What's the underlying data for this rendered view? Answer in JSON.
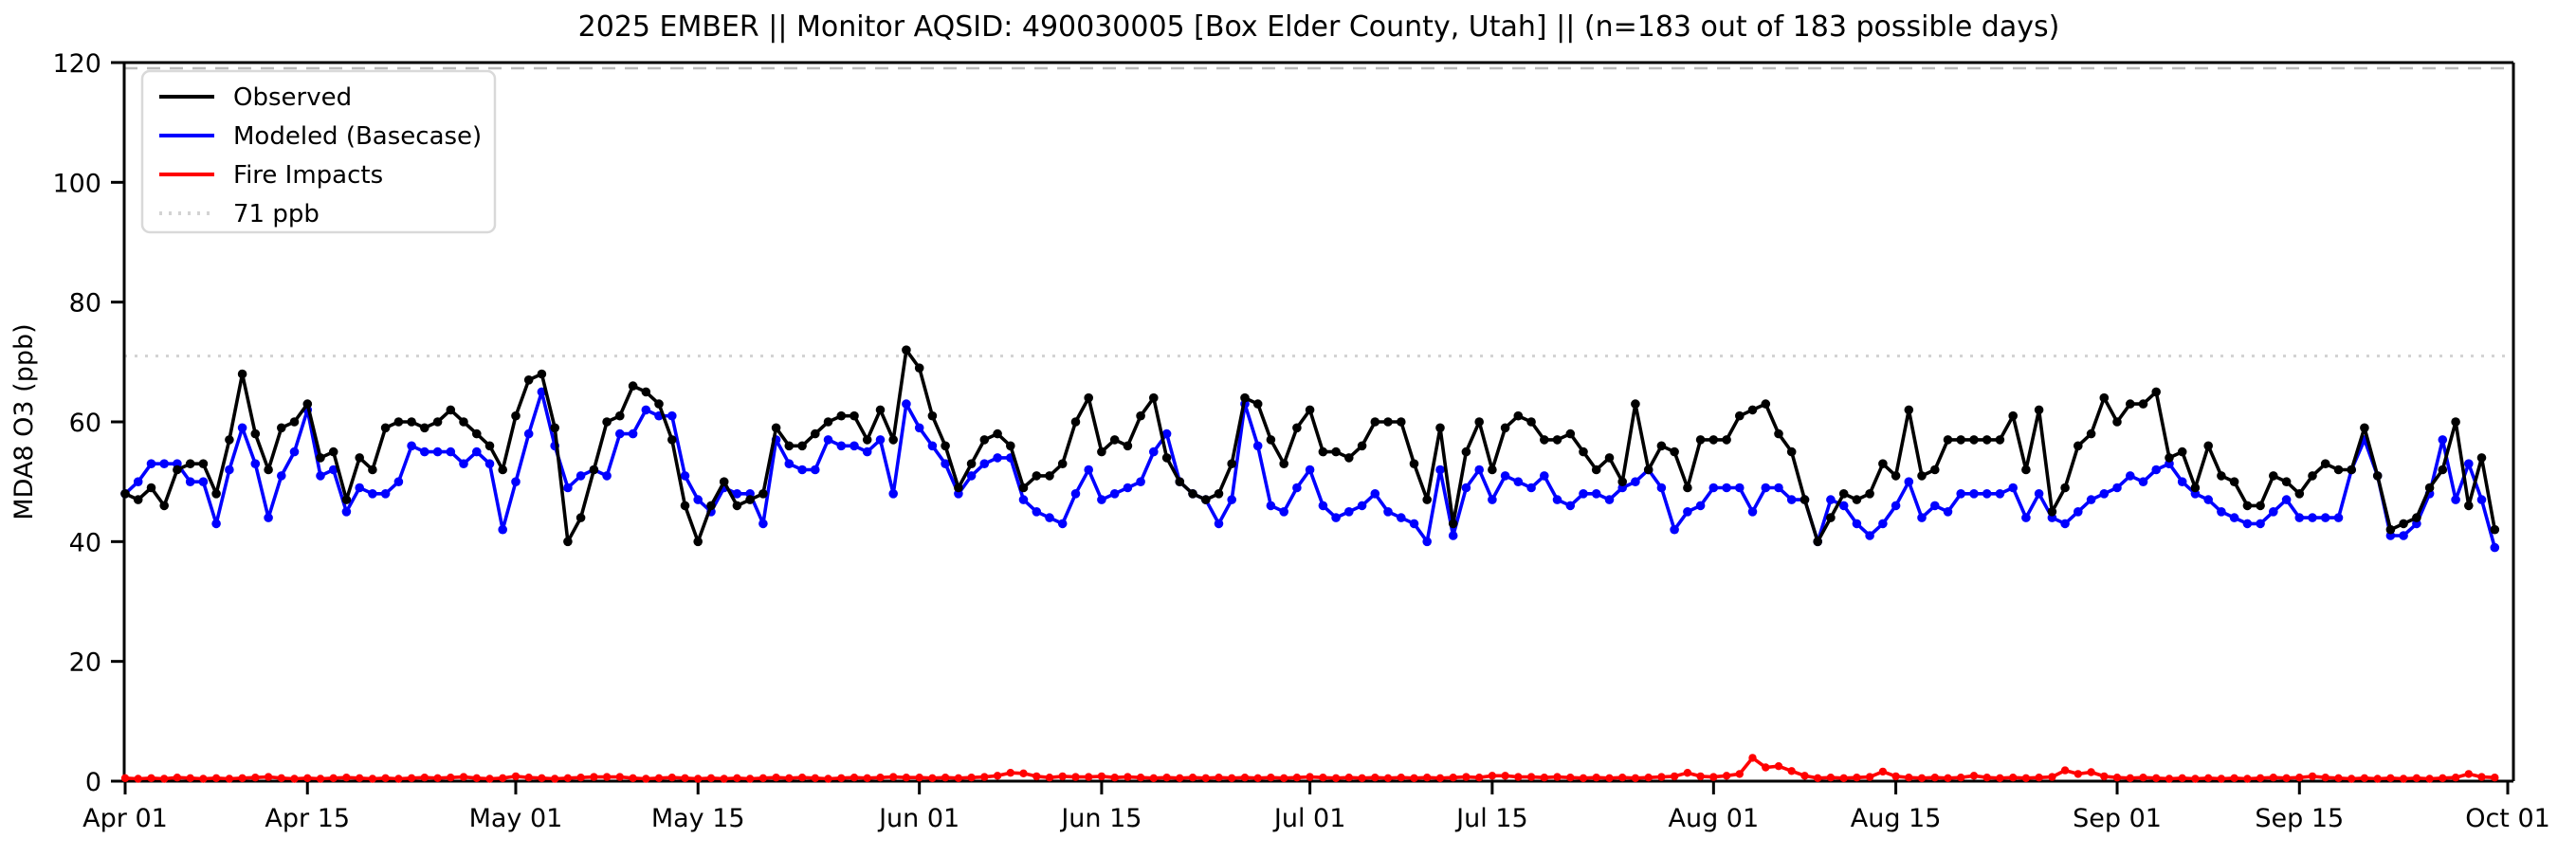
{
  "chart_data": {
    "type": "line",
    "title": "2025 EMBER || Monitor AQSID: 490030005 [Box Elder County, Utah] || (n=183 out of 183 possible days)",
    "ylabel": "MDA8 O3 (ppb)",
    "ylim": [
      0,
      120
    ],
    "x_range": [
      "Apr 01",
      "Oct 01"
    ],
    "n_days": 183,
    "grid": false,
    "legend_position": "upper left",
    "y_ticks": [
      0,
      20,
      40,
      60,
      80,
      100,
      120
    ],
    "x_ticks": [
      {
        "label": "Apr 01",
        "i": 0
      },
      {
        "label": "Apr 15",
        "i": 14
      },
      {
        "label": "May 01",
        "i": 30
      },
      {
        "label": "May 15",
        "i": 44
      },
      {
        "label": "Jun 01",
        "i": 61
      },
      {
        "label": "Jun 15",
        "i": 75
      },
      {
        "label": "Jul 01",
        "i": 91
      },
      {
        "label": "Jul 15",
        "i": 105
      },
      {
        "label": "Aug 01",
        "i": 122
      },
      {
        "label": "Aug 15",
        "i": 136
      },
      {
        "label": "Sep 01",
        "i": 153
      },
      {
        "label": "Sep 15",
        "i": 167
      },
      {
        "label": "Oct 01",
        "i": 183
      }
    ],
    "threshold": {
      "label": "71 ppb",
      "value": 71,
      "color": "#d3d3d3"
    },
    "top_dashed_line": {
      "value": 120,
      "color": "#bbbbbb"
    },
    "series": [
      {
        "name": "Observed",
        "color": "#000000",
        "values": [
          48,
          47,
          49,
          46,
          52,
          53,
          53,
          48,
          57,
          68,
          58,
          52,
          59,
          60,
          63,
          54,
          55,
          47,
          54,
          52,
          59,
          60,
          60,
          59,
          60,
          62,
          60,
          58,
          56,
          52,
          61,
          67,
          68,
          59,
          40,
          44,
          52,
          60,
          61,
          66,
          65,
          63,
          57,
          46,
          40,
          46,
          50,
          46,
          47,
          48,
          59,
          56,
          56,
          58,
          60,
          61,
          61,
          57,
          62,
          57,
          72,
          69,
          61,
          56,
          49,
          53,
          57,
          58,
          56,
          49,
          51,
          51,
          53,
          60,
          64,
          55,
          57,
          56,
          61,
          64,
          54,
          50,
          48,
          47,
          48,
          53,
          64,
          63,
          57,
          53,
          59,
          62,
          55,
          55,
          54,
          56,
          60,
          60,
          60,
          53,
          47,
          59,
          43,
          55,
          60,
          52,
          59,
          61,
          60,
          57,
          57,
          58,
          55,
          52,
          54,
          50,
          63,
          52,
          56,
          55,
          49,
          57,
          57,
          57,
          61,
          62,
          63,
          58,
          55,
          47,
          40,
          44,
          48,
          47,
          48,
          53,
          51,
          62,
          51,
          52,
          57,
          57,
          57,
          57,
          57,
          61,
          52,
          62,
          45,
          49,
          56,
          58,
          64,
          60,
          63,
          63,
          65,
          54,
          55,
          49,
          56,
          51,
          50,
          46,
          46,
          51,
          50,
          48,
          51,
          53,
          52,
          52,
          59,
          51,
          42,
          43,
          44,
          49,
          52,
          60,
          46,
          54,
          42
        ]
      },
      {
        "name": "Modeled (Basecase)",
        "color": "#0000ff",
        "values": [
          48,
          50,
          53,
          53,
          53,
          50,
          50,
          43,
          52,
          59,
          53,
          44,
          51,
          55,
          62,
          51,
          52,
          45,
          49,
          48,
          48,
          50,
          56,
          55,
          55,
          55,
          53,
          55,
          53,
          42,
          50,
          58,
          65,
          56,
          49,
          51,
          52,
          51,
          58,
          58,
          62,
          61,
          61,
          51,
          47,
          45,
          49,
          48,
          48,
          43,
          57,
          53,
          52,
          52,
          57,
          56,
          56,
          55,
          57,
          48,
          63,
          59,
          56,
          53,
          48,
          51,
          53,
          54,
          54,
          47,
          45,
          44,
          43,
          48,
          52,
          47,
          48,
          49,
          50,
          55,
          58,
          50,
          48,
          47,
          43,
          47,
          63,
          56,
          46,
          45,
          49,
          52,
          46,
          44,
          45,
          46,
          48,
          45,
          44,
          43,
          40,
          52,
          41,
          49,
          52,
          47,
          51,
          50,
          49,
          51,
          47,
          46,
          48,
          48,
          47,
          49,
          50,
          52,
          49,
          42,
          45,
          46,
          49,
          49,
          49,
          45,
          49,
          49,
          47,
          47,
          40,
          47,
          46,
          43,
          41,
          43,
          46,
          50,
          44,
          46,
          45,
          48,
          48,
          48,
          48,
          49,
          44,
          48,
          44,
          43,
          45,
          47,
          48,
          49,
          51,
          50,
          52,
          53,
          50,
          48,
          47,
          45,
          44,
          43,
          43,
          45,
          47,
          44,
          44,
          44,
          44,
          52,
          57,
          51,
          41,
          41,
          43,
          48,
          57,
          47,
          53,
          47,
          39
        ]
      },
      {
        "name": "Fire Impacts",
        "color": "#ff0000",
        "values": [
          0.5,
          0.4,
          0.5,
          0.4,
          0.6,
          0.5,
          0.4,
          0.5,
          0.4,
          0.5,
          0.6,
          0.7,
          0.5,
          0.4,
          0.5,
          0.4,
          0.5,
          0.6,
          0.5,
          0.4,
          0.5,
          0.4,
          0.5,
          0.6,
          0.5,
          0.6,
          0.7,
          0.5,
          0.4,
          0.5,
          0.8,
          0.6,
          0.5,
          0.4,
          0.5,
          0.6,
          0.7,
          0.7,
          0.7,
          0.5,
          0.4,
          0.5,
          0.6,
          0.5,
          0.4,
          0.5,
          0.4,
          0.5,
          0.4,
          0.5,
          0.6,
          0.5,
          0.6,
          0.5,
          0.4,
          0.5,
          0.6,
          0.5,
          0.6,
          0.7,
          0.6,
          0.6,
          0.5,
          0.6,
          0.5,
          0.6,
          0.7,
          0.9,
          1.4,
          1.3,
          0.8,
          0.6,
          0.8,
          0.7,
          0.7,
          0.8,
          0.6,
          0.7,
          0.6,
          0.5,
          0.6,
          0.5,
          0.6,
          0.5,
          0.6,
          0.5,
          0.6,
          0.5,
          0.6,
          0.5,
          0.6,
          0.7,
          0.6,
          0.5,
          0.6,
          0.5,
          0.6,
          0.5,
          0.6,
          0.5,
          0.6,
          0.5,
          0.6,
          0.7,
          0.6,
          0.9,
          0.9,
          0.7,
          0.7,
          0.6,
          0.7,
          0.6,
          0.5,
          0.6,
          0.5,
          0.6,
          0.5,
          0.6,
          0.7,
          0.8,
          1.4,
          0.8,
          0.7,
          0.9,
          1.2,
          3.9,
          2.3,
          2.5,
          1.7,
          0.9,
          0.5,
          0.6,
          0.5,
          0.6,
          0.7,
          1.6,
          0.8,
          0.6,
          0.5,
          0.6,
          0.5,
          0.6,
          0.9,
          0.6,
          0.5,
          0.6,
          0.5,
          0.6,
          0.7,
          1.8,
          1.2,
          1.5,
          0.8,
          0.6,
          0.5,
          0.6,
          0.5,
          0.4,
          0.5,
          0.4,
          0.5,
          0.4,
          0.5,
          0.4,
          0.5,
          0.6,
          0.5,
          0.6,
          0.8,
          0.6,
          0.5,
          0.4,
          0.5,
          0.4,
          0.5,
          0.4,
          0.5,
          0.4,
          0.5,
          0.6,
          1.2,
          0.7,
          0.6
        ]
      }
    ]
  },
  "legend": {
    "items": [
      {
        "label": "Observed"
      },
      {
        "label": "Modeled (Basecase)"
      },
      {
        "label": "Fire Impacts"
      },
      {
        "label": "71 ppb"
      }
    ]
  }
}
